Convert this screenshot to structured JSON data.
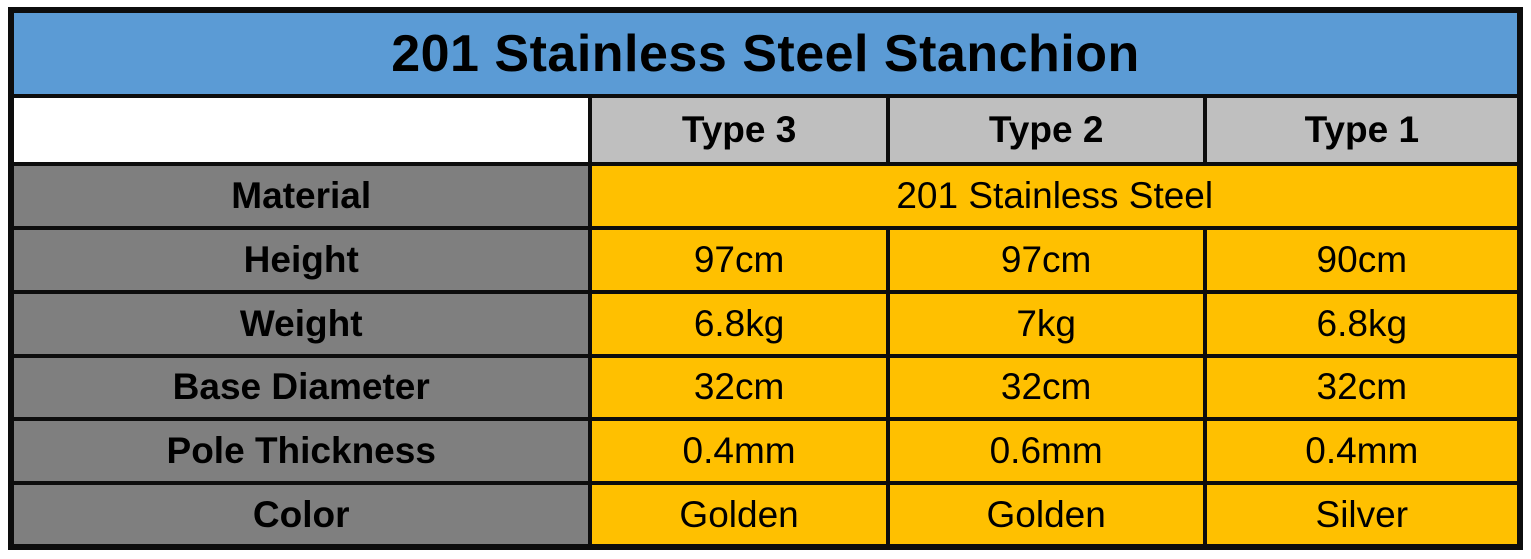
{
  "chart_data": {
    "type": "table",
    "title": "201 Stainless Steel Stanchion",
    "column_headers": [
      "",
      "Type 3",
      "Type 2",
      "Type 1"
    ],
    "rows": [
      {
        "label": "Material",
        "merged_across_types": true,
        "values": [
          "201 Stainless Steel"
        ]
      },
      {
        "label": "Height",
        "merged_across_types": false,
        "values": [
          "97cm",
          "97cm",
          "90cm"
        ]
      },
      {
        "label": "Weight",
        "merged_across_types": false,
        "values": [
          "6.8kg",
          "7kg",
          "6.8kg"
        ]
      },
      {
        "label": "Base Diameter",
        "merged_across_types": false,
        "values": [
          "32cm",
          "32cm",
          "32cm"
        ]
      },
      {
        "label": "Pole Thickness",
        "merged_across_types": false,
        "values": [
          "0.4mm",
          "0.6mm",
          "0.4mm"
        ]
      },
      {
        "label": "Color",
        "merged_across_types": false,
        "values": [
          "Golden",
          "Golden",
          "Silver"
        ]
      }
    ],
    "layout_hints": {
      "title_position": "top-merged-row",
      "label_column_position": "left",
      "grid": true
    }
  },
  "colors": {
    "title_bg": "#5b9bd5",
    "header_bg": "#bfbfbf",
    "label_bg": "#7f7f7f",
    "value_bg": "#ffc000",
    "empty_cell_bg": "#ffffff",
    "border": "#0d0d0d",
    "text": "#000000",
    "page_bg": "#ffffff"
  }
}
